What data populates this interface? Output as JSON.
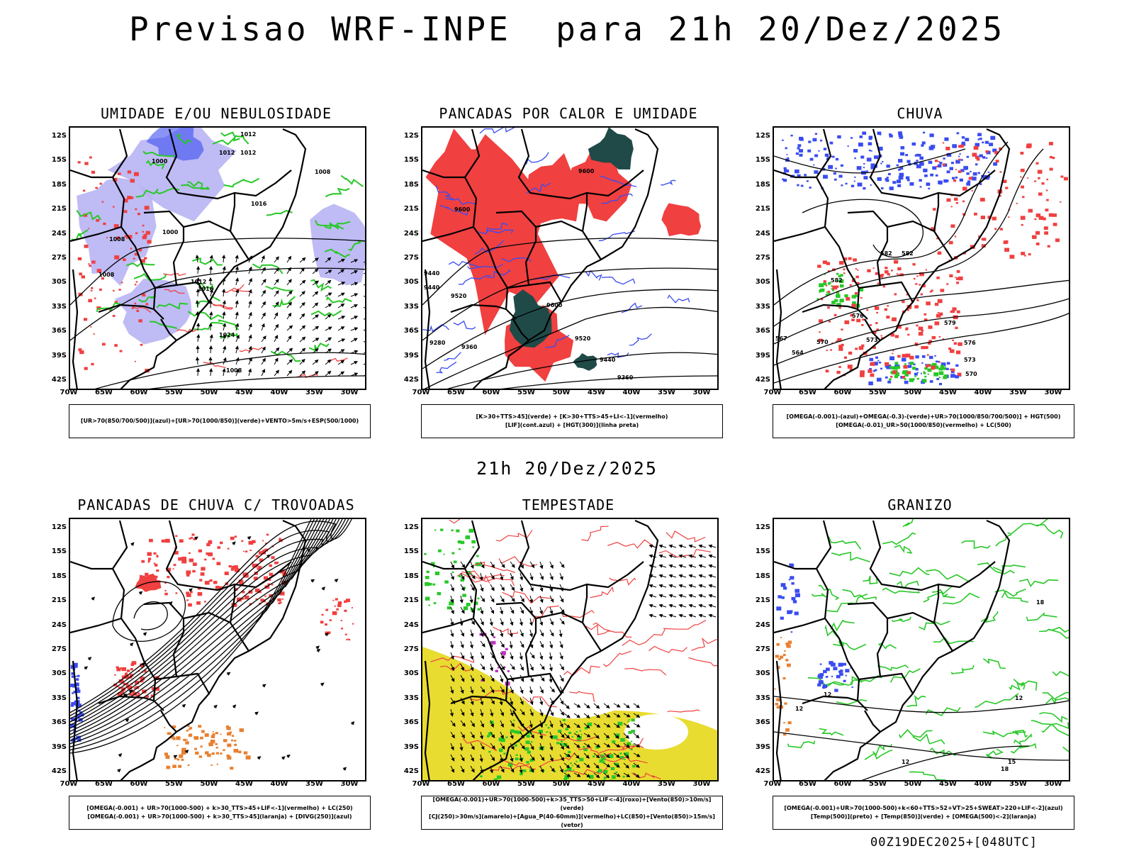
{
  "main_title": "Previsao WRF-INPE  para 21h 20/Dez/2025",
  "middle_label": "21h 20/Dez/2025",
  "footer_stamp": "00Z19DEC2025+[048UTC]",
  "lat_labels": [
    "12S",
    "15S",
    "18S",
    "21S",
    "24S",
    "27S",
    "30S",
    "33S",
    "36S",
    "39S",
    "42S"
  ],
  "lon_labels": [
    "70W",
    "65W",
    "60W",
    "55W",
    "50W",
    "45W",
    "40W",
    "35W",
    "30W"
  ],
  "colors": {
    "blue": "#3a4cf0",
    "lavender": "#b8b4f4",
    "green": "#28c828",
    "red": "#f04040",
    "dark_teal": "#1f4a48",
    "orange": "#e88030",
    "yellow": "#e8dc30",
    "purple": "#c030c0",
    "black": "#000000"
  },
  "panels": [
    {
      "title": "UMIDADE E/OU NEBULOSIDADE",
      "legend": [
        "[UR>70(850/700/500)](azul)+[UR>70(1000/850)](verde)+VENTO>5m/s+ESP(500/1000)"
      ],
      "contour_labels": [
        "1012",
        "1012",
        "1012",
        "1000",
        "1016",
        "1008",
        "1000",
        "1008",
        "1012",
        "1016",
        "1024",
        "1008",
        "1008"
      ]
    },
    {
      "title": "PANCADAS POR CALOR E UMIDADE",
      "legend": [
        "[K>30+TTS>45](verde) + [K>30+TTS>45+LI<-1](vermelho)",
        "[LIF](cont.azul) + [HGT(300)](linha preta)"
      ],
      "contour_labels": [
        "9600",
        "9600",
        "9440",
        "9520",
        "9600",
        "9440",
        "9360",
        "9280",
        "9520",
        "9440",
        "9360"
      ]
    },
    {
      "title": "CHUVA",
      "legend": [
        "[OMEGA(-0.001)-(azul)+OMEGA(-0.3)-(verde)+UR>70(1000/850/700/500)] + HGT(500)",
        "[OMEGA(-0.01)_UR>50(1000/850)(vermelho) + LC(500)"
      ],
      "contour_labels": [
        "582",
        "582",
        "582",
        "576",
        "573",
        "570",
        "567",
        "564",
        "579",
        "576",
        "573",
        "570"
      ]
    },
    {
      "title": "PANCADAS DE CHUVA C/ TROVOADAS",
      "legend": [
        "[OMEGA(-0.001) + UR>70(1000-500) + k>30_TTS>45+LIF<-1](vermelho) + LC(250)",
        "[OMEGA(-0.001) + UR>70(1000-500) + k>30_TTS>45](laranja) + [DIVG(250)](azul)"
      ],
      "contour_labels": []
    },
    {
      "title": "TEMPESTADE",
      "legend": [
        "[OMEGA(-0.001)+UR>70(1000-500)+k>35_TTS>50+LIF<-4](roxo)+[Vento(850)>10m/s](verde)",
        "[CJ(250)>30m/s](amarelo)+[Agua_P(40-60mm)](vermelho)+LC(850)+[Vento(850)>15m/s](vetor)"
      ],
      "contour_labels": []
    },
    {
      "title": "GRANIZO",
      "legend": [
        "[OMEGA(-0.001)+UR>70(1000-500)+k<60+TTS>52+VT>25+SWEAT>220+LIF<-2](azul)",
        "[Temp(500)](preto) + [Temp(850)](verde) + [OMEGA(500)<-2](laranja)"
      ],
      "contour_labels": [
        "12",
        "12",
        "12",
        "15",
        "18",
        "12",
        "18"
      ]
    }
  ]
}
